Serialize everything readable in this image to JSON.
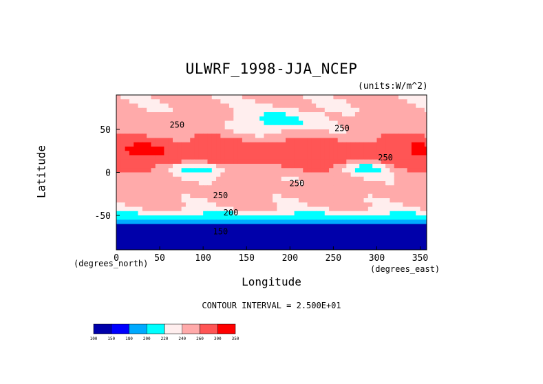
{
  "chart_data": {
    "type": "heatmap",
    "title": "ULWRF_1998-JJA_NCEP",
    "units_note": "(units:W/m^2)",
    "xlabel": "Longitude",
    "ylabel": "Latitude",
    "x_unit_label": "(degrees_east)",
    "y_unit_label": "(degrees_north)",
    "xlim": [
      0,
      357.5
    ],
    "ylim": [
      -90,
      90
    ],
    "x_ticks": [
      0,
      50,
      100,
      150,
      200,
      250,
      300,
      350
    ],
    "y_ticks": [
      -50,
      0,
      50
    ],
    "contour_interval_text": "CONTOUR INTERVAL = 2.500E+01",
    "contour_labels": [
      {
        "text": "250",
        "lon": 70,
        "lat": 52
      },
      {
        "text": "250",
        "lon": 260,
        "lat": 48
      },
      {
        "text": "250",
        "lon": 310,
        "lat": 14
      },
      {
        "text": "250",
        "lon": 208,
        "lat": -16
      },
      {
        "text": "250",
        "lon": 120,
        "lat": -30
      },
      {
        "text": "200",
        "lon": 132,
        "lat": -50
      },
      {
        "text": "150",
        "lon": 120,
        "lat": -72
      }
    ],
    "colorbar": {
      "boundaries": [
        "100",
        "150",
        "180",
        "200",
        "220",
        "240",
        "260",
        "300",
        "350"
      ],
      "colors": [
        "#0000aa",
        "#0000ff",
        "#00aaff",
        "#00ffff",
        "#ffeeee",
        "#ffaaaa",
        "#ff5555",
        "#ff0000"
      ]
    }
  }
}
